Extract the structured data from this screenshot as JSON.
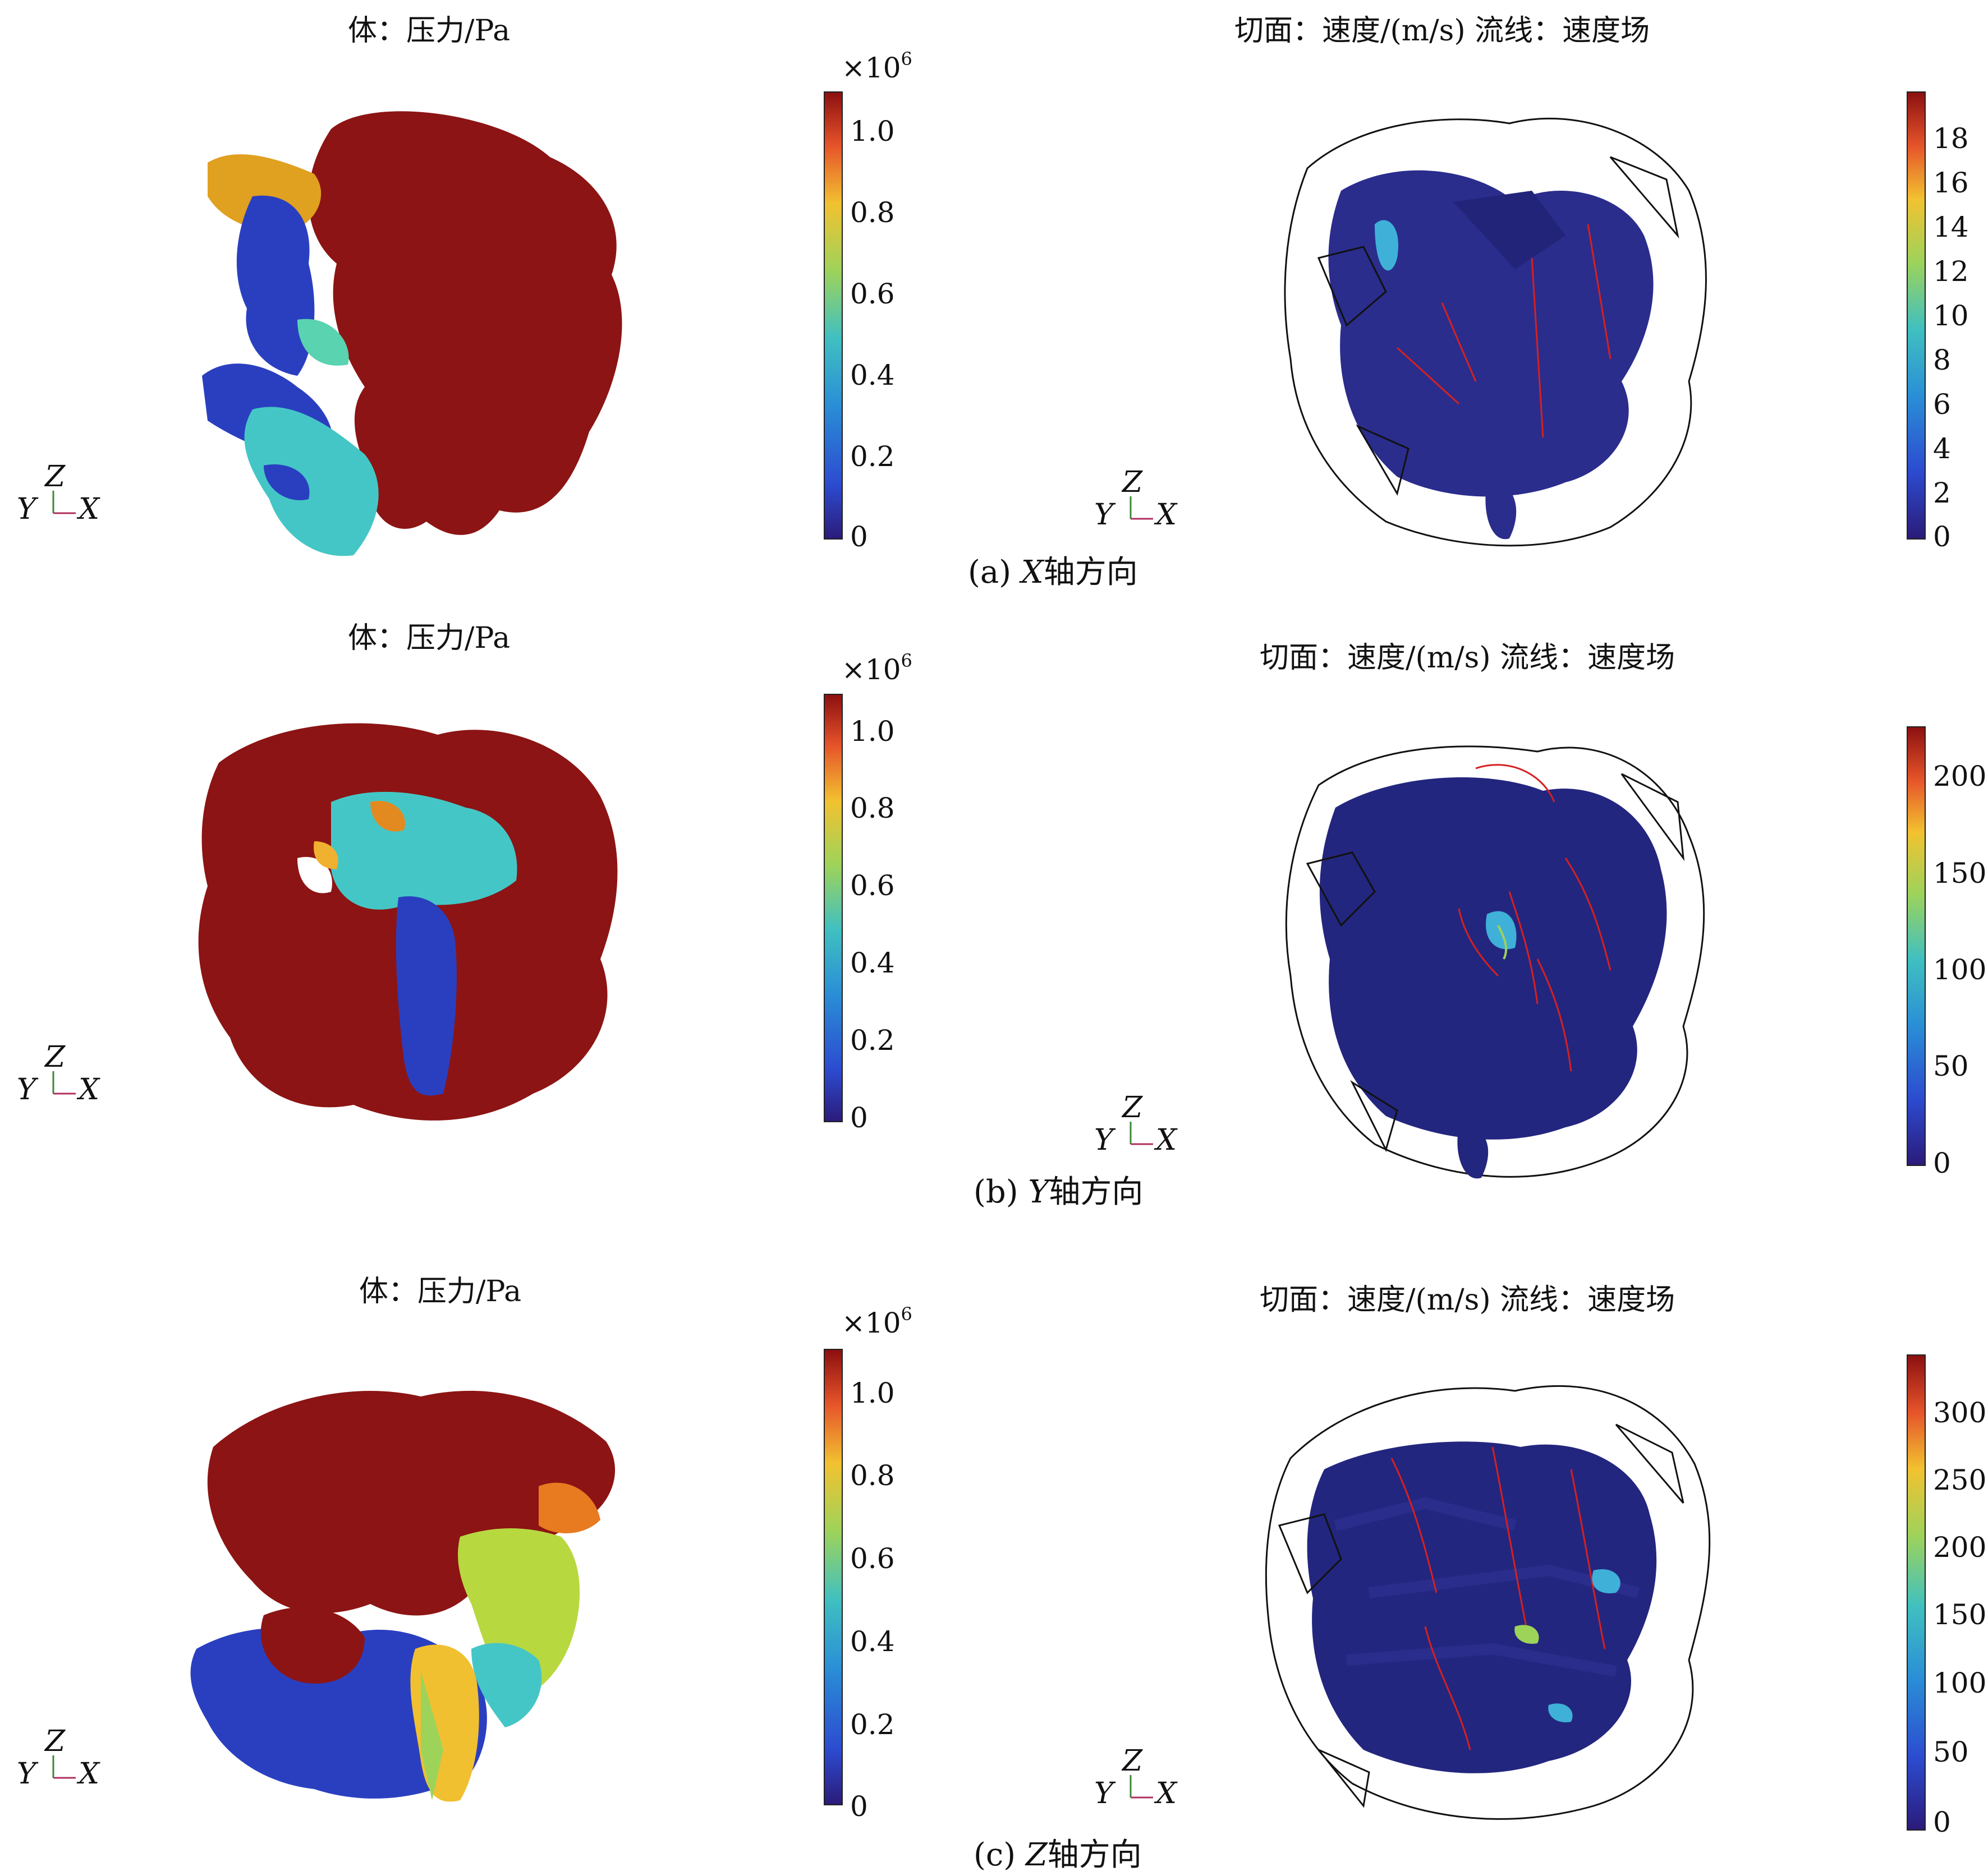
{
  "rows": [
    {
      "left_title": "体：压力/Pa",
      "right_title": "切面：速度/(m/s) 流线：速度场",
      "pressure_multiplier": "×10",
      "pressure_exponent": "6",
      "pressure_ticks": [
        "1.0",
        "0.8",
        "0.6",
        "0.4",
        "0.2",
        "0"
      ],
      "velocity_ticks": [
        "18",
        "16",
        "14",
        "12",
        "10",
        "8",
        "6",
        "4",
        "2",
        "0"
      ],
      "caption_prefix": "(a) ",
      "caption_axis": "X",
      "caption_suffix": "轴方向"
    },
    {
      "left_title": "体：压力/Pa",
      "right_title": "切面：速度/(m/s) 流线：速度场",
      "pressure_multiplier": "×10",
      "pressure_exponent": "6",
      "pressure_ticks": [
        "1.0",
        "0.8",
        "0.6",
        "0.4",
        "0.2",
        "0"
      ],
      "velocity_ticks": [
        "200",
        "150",
        "100",
        "50",
        "0"
      ],
      "caption_prefix": "(b) ",
      "caption_axis": "Y",
      "caption_suffix": "轴方向"
    },
    {
      "left_title": "体：压力/Pa",
      "right_title": "切面：速度/(m/s) 流线：速度场",
      "pressure_multiplier": "×10",
      "pressure_exponent": "6",
      "pressure_ticks": [
        "1.0",
        "0.8",
        "0.6",
        "0.4",
        "0.2",
        "0"
      ],
      "velocity_ticks": [
        "300",
        "250",
        "200",
        "150",
        "100",
        "50",
        "0"
      ],
      "caption_prefix": "(c) ",
      "caption_axis": "Z",
      "caption_suffix": "轴方向"
    }
  ],
  "triad": {
    "z": "Z",
    "y": "Y",
    "x": "X"
  },
  "colors": {
    "high": "#8c1010",
    "low": "#2b2f9e",
    "mid": "#40c0c0",
    "wire": "#111111",
    "streamline": "#d62020"
  }
}
